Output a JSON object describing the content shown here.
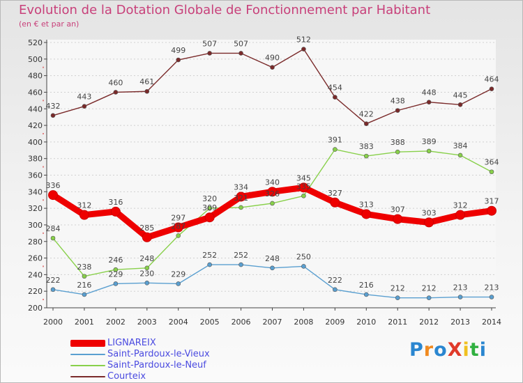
{
  "title": "Evolution de la Dotation Globale de Fonctionnement par Habitant",
  "subtitle": "(en € et par an)",
  "logo": "ProXiti",
  "colors": {
    "title": "#c8407a",
    "axis": "#444444",
    "grid": "#d0d0d0",
    "legend_text": "#4a4ae0"
  },
  "chart_data": {
    "type": "line",
    "title": "Evolution de la Dotation Globale de Fonctionnement par Habitant",
    "subtitle": "(en € et par an)",
    "x": [
      "2000",
      "2001",
      "2002",
      "2003",
      "2004",
      "2005",
      "2006",
      "2007",
      "2008",
      "2009",
      "2010",
      "2011",
      "2012",
      "2013",
      "2014"
    ],
    "ylim": [
      200,
      520
    ],
    "yticks": [
      200,
      220,
      240,
      260,
      280,
      300,
      320,
      340,
      360,
      380,
      400,
      420,
      440,
      460,
      480,
      500,
      520
    ],
    "grid": "horizontal-dashed",
    "legend_position": "bottom-left",
    "series": [
      {
        "name": "LIGNAREIX",
        "color": "#ee0000",
        "values": [
          336,
          312,
          316,
          285,
          297,
          309,
          334,
          340,
          345,
          327,
          313,
          307,
          303,
          312,
          317
        ],
        "labels": [
          "336",
          "312",
          "316",
          "285",
          "297",
          "309",
          "334",
          "340",
          "345",
          "327",
          "313",
          "307",
          "303",
          "312",
          "317"
        ]
      },
      {
        "name": "Saint-Pardoux-le-Vieux",
        "color": "#5a9fd0",
        "values": [
          222,
          216,
          229,
          230,
          229,
          252,
          252,
          248,
          250,
          222,
          216,
          212,
          212,
          213,
          213
        ],
        "labels": [
          "222",
          "216",
          "229",
          "230",
          "229",
          "252",
          "252",
          "248",
          "250",
          "222",
          "216",
          "212",
          "212",
          "213",
          "213"
        ]
      },
      {
        "name": "Saint-Pardoux-le-Neuf",
        "color": "#88d04a",
        "values": [
          284,
          238,
          246,
          248,
          287,
          320,
          321,
          326,
          335,
          391,
          383,
          388,
          389,
          384,
          364
        ],
        "labels": [
          "284",
          "238",
          "246",
          "248",
          "287",
          "320",
          "321",
          "326",
          "335",
          "391",
          "383",
          "388",
          "389",
          "384",
          "364"
        ]
      },
      {
        "name": "Courteix",
        "color": "#7a2a2a",
        "values": [
          432,
          443,
          460,
          461,
          499,
          507,
          507,
          490,
          512,
          454,
          422,
          438,
          448,
          445,
          464
        ],
        "labels": [
          "432",
          "443",
          "460",
          "461",
          "499",
          "507",
          "507",
          "490",
          "512",
          "454",
          "422",
          "438",
          "448",
          "445",
          "464"
        ]
      }
    ]
  }
}
